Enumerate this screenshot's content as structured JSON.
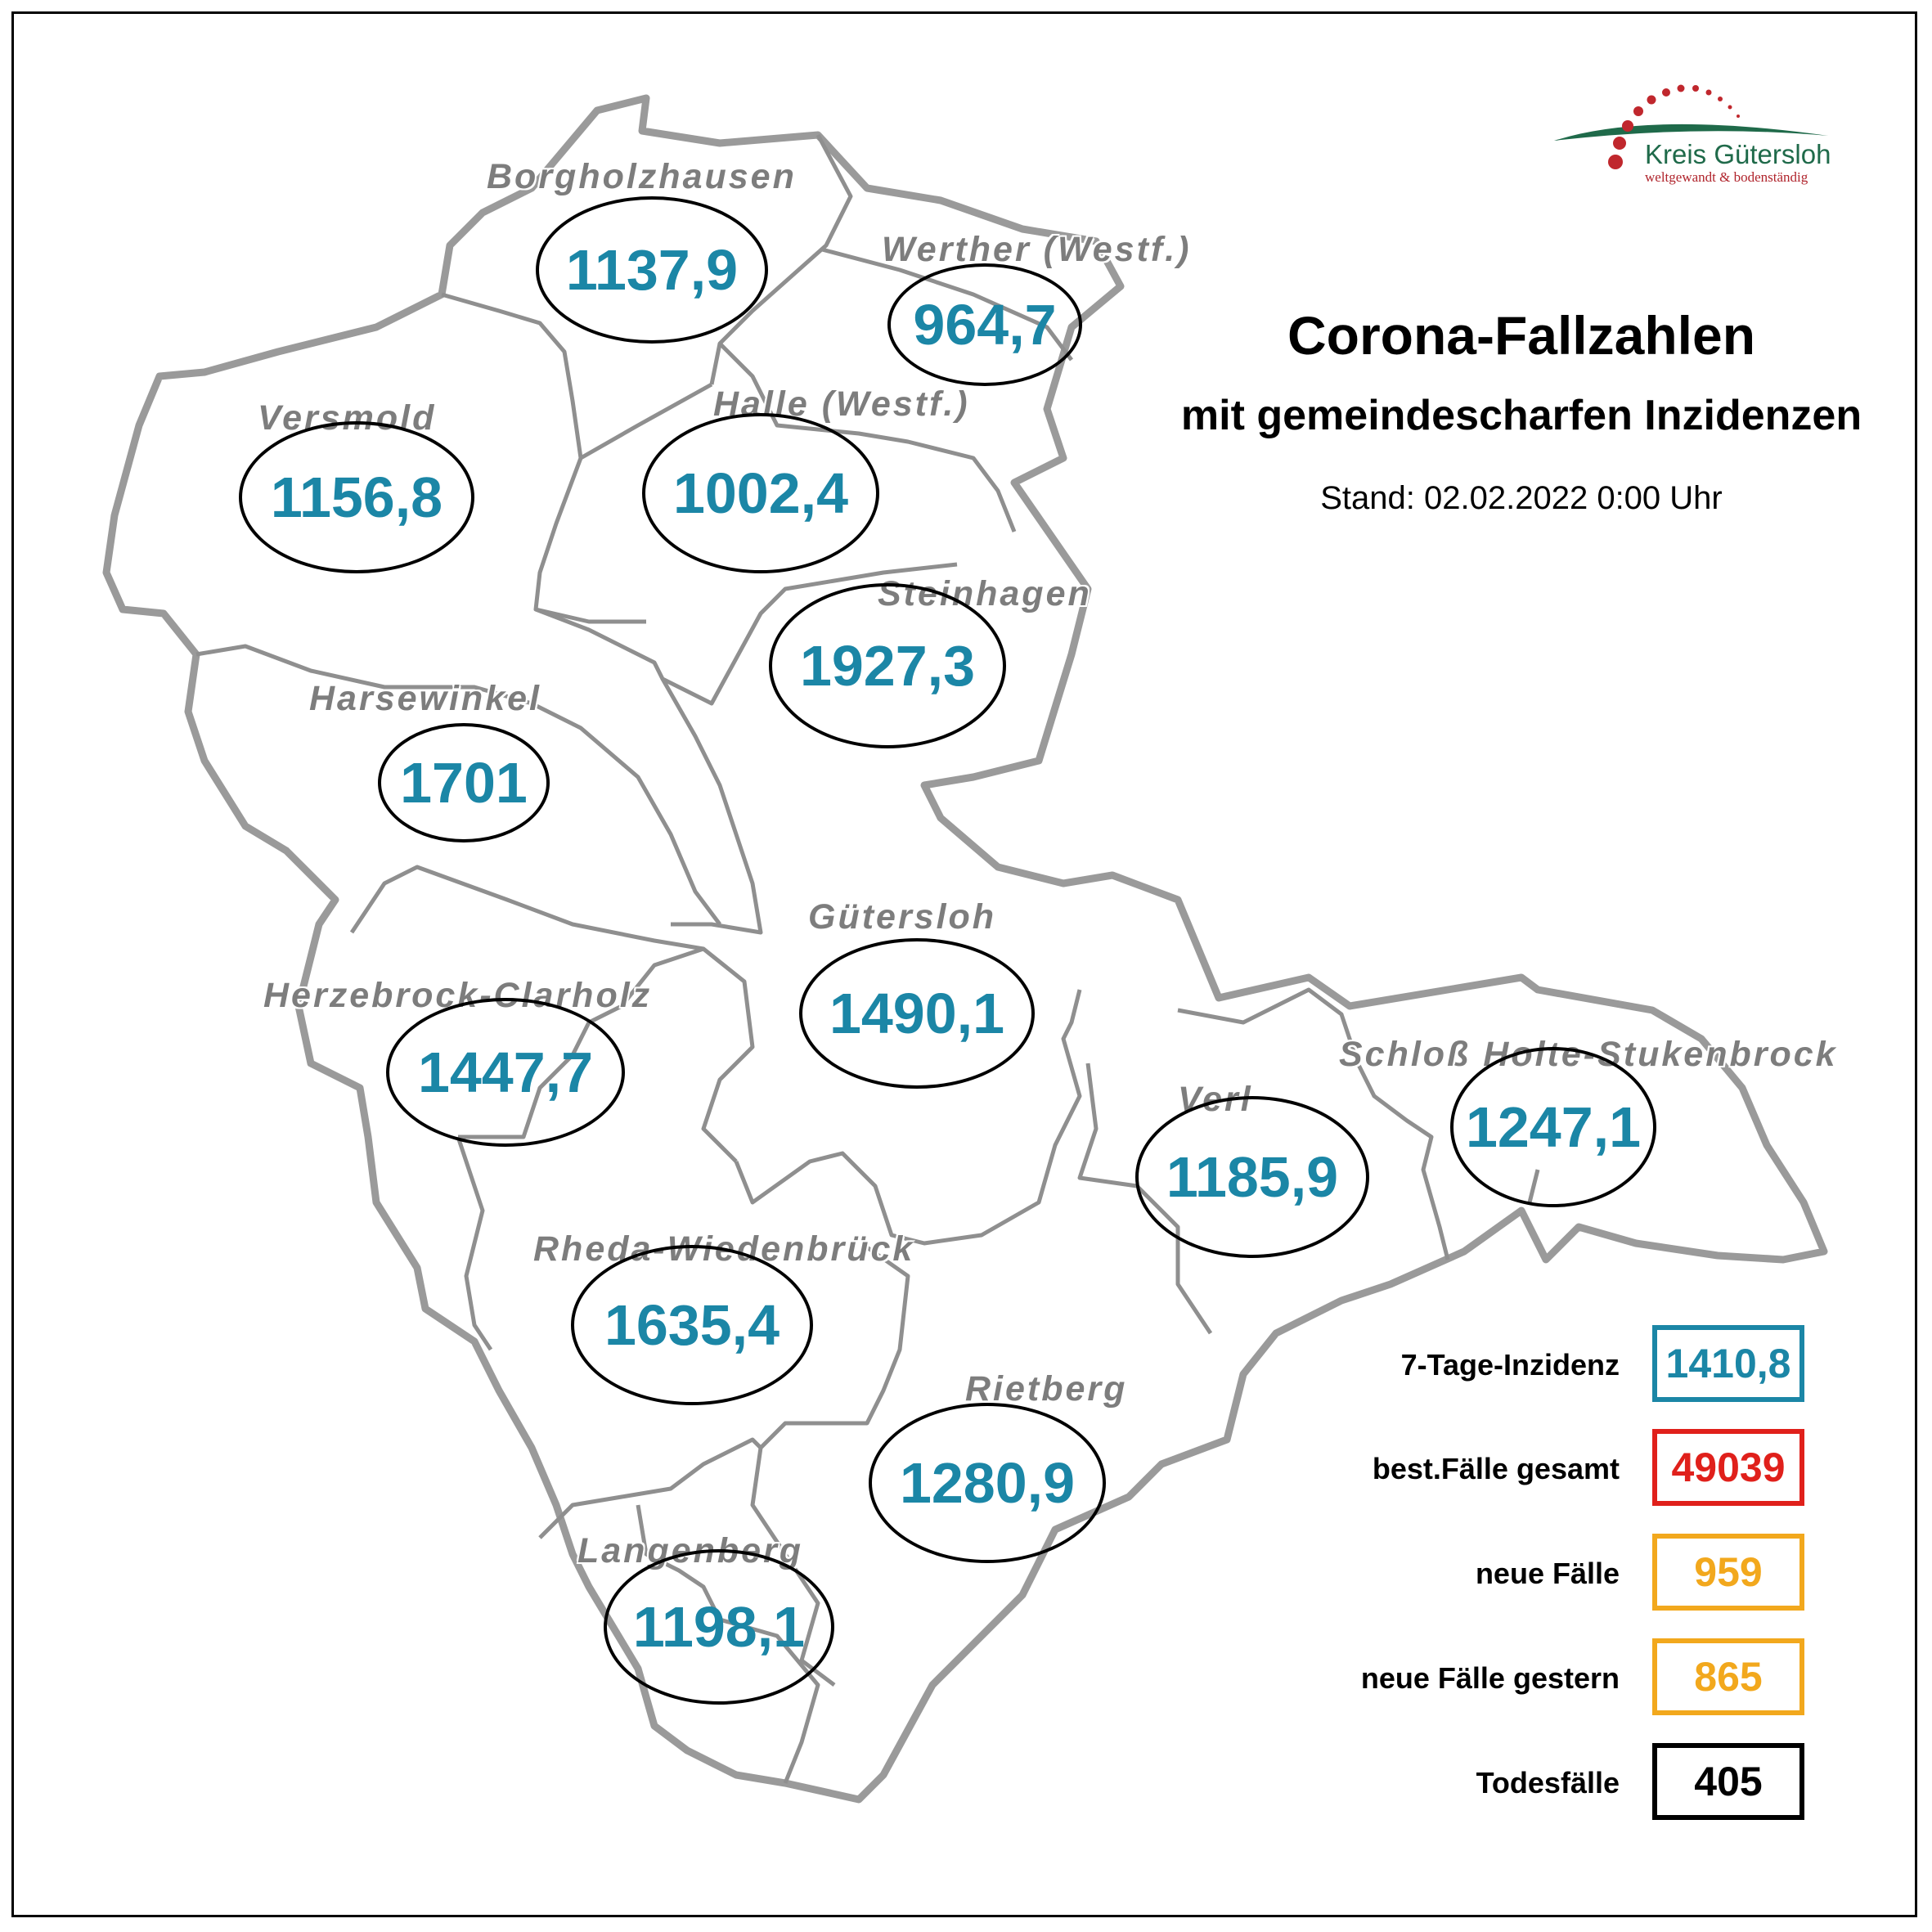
{
  "header": {
    "title": "Corona-Fallzahlen",
    "subtitle": "mit gemeindescharfen Inzidenzen",
    "stand": "Stand: 02.02.2022 0:00 Uhr"
  },
  "logo": {
    "name": "Kreis Gütersloh",
    "tagline": "weltgewandt & bodenständig",
    "colors": {
      "green": "#1f6a4a",
      "red": "#c0272d"
    }
  },
  "colors": {
    "incidence_text": "#1b86a6",
    "town_label": "#7d7d7d",
    "border_outer": "#9a9a9a",
    "border_inner": "#8f8f8f"
  },
  "towns": [
    {
      "name": "Borgholzhausen",
      "incidence": "1137,9"
    },
    {
      "name": "Werther (Westf.)",
      "incidence": "964,7"
    },
    {
      "name": "Versmold",
      "incidence": "1156,8"
    },
    {
      "name": "Halle (Westf.)",
      "incidence": "1002,4"
    },
    {
      "name": "Steinhagen",
      "incidence": "1927,3"
    },
    {
      "name": "Harsewinkel",
      "incidence": "1701"
    },
    {
      "name": "Gütersloh",
      "incidence": "1490,1"
    },
    {
      "name": "Herzebrock-Clarholz",
      "incidence": "1447,7"
    },
    {
      "name": "Verl",
      "incidence": "1185,9"
    },
    {
      "name": "Schloß Holte-Stukenbrock",
      "incidence": "1247,1"
    },
    {
      "name": "Rheda-Wiedenbrück",
      "incidence": "1635,4"
    },
    {
      "name": "Rietberg",
      "incidence": "1280,9"
    },
    {
      "name": "Langenberg",
      "incidence": "1198,1"
    }
  ],
  "legend": [
    {
      "label": "7-Tage-Inzidenz",
      "value": "1410,8",
      "color": "#1b86a6"
    },
    {
      "label": "best.Fälle gesamt",
      "value": "49039",
      "color": "#e0201b"
    },
    {
      "label": "neue Fälle",
      "value": "959",
      "color": "#f2a81d"
    },
    {
      "label": "neue Fälle gestern",
      "value": "865",
      "color": "#f2a81d"
    },
    {
      "label": "Todesfälle",
      "value": "405",
      "color": "#000000"
    }
  ]
}
